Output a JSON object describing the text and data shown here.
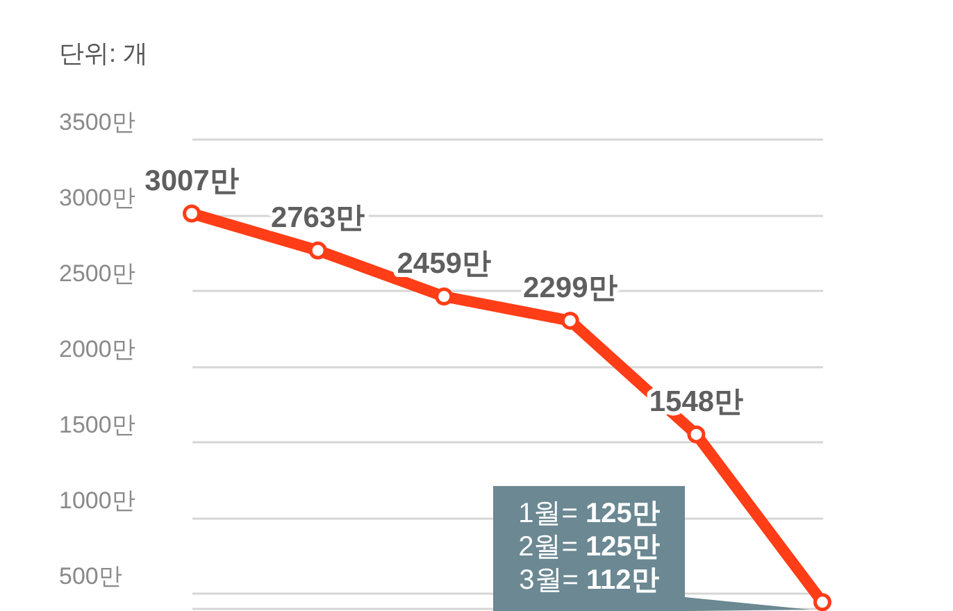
{
  "chart_data": {
    "type": "line",
    "ylabel": "단위: 개",
    "categories": [
      null,
      null,
      null,
      null,
      null,
      null
    ],
    "values": [
      3007,
      2763,
      2459,
      2299,
      1548,
      440
    ],
    "value_labels": [
      "3007만",
      "2763만",
      "2459만",
      "2299만",
      "1548만",
      null
    ],
    "color": "#ff3d17",
    "ylim": [
      400,
      3500
    ],
    "yticks": [
      {
        "value": 500,
        "label": "500만"
      },
      {
        "value": 1000,
        "label": "1000만"
      },
      {
        "value": 1500,
        "label": "1500만"
      },
      {
        "value": 2000,
        "label": "2000만"
      },
      {
        "value": 2500,
        "label": "2500만"
      },
      {
        "value": 3000,
        "label": "3000만"
      },
      {
        "value": 3500,
        "label": "3500만"
      }
    ],
    "grid": "y",
    "marker": "circle",
    "line_style": "solid",
    "tick_labels": "y",
    "annotations": [
      "1월= 125만",
      "2월= 125만",
      "3월= 112만"
    ]
  }
}
